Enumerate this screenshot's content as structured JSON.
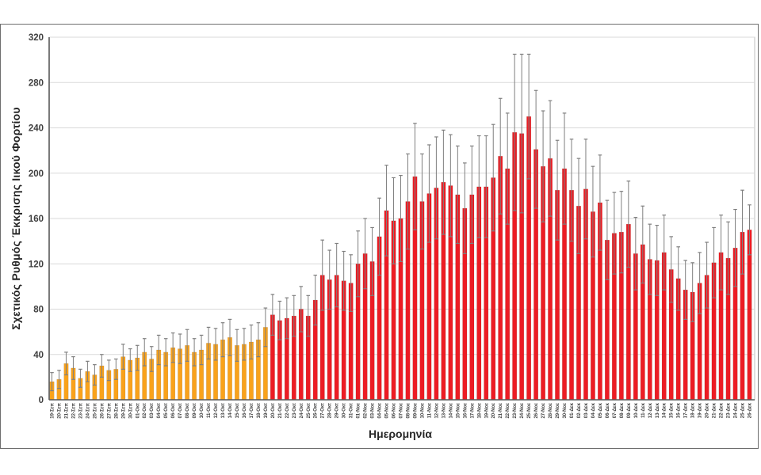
{
  "chart_data": {
    "type": "bar",
    "title": "",
    "xlabel": "Ημερομηνία",
    "ylabel": "Σχετικός Ρυθμός Έκκρισης Ιικού Φορτίου",
    "ylim": [
      0,
      320
    ],
    "yticks": [
      0,
      40,
      80,
      120,
      160,
      200,
      240,
      280,
      320
    ],
    "grid": true,
    "legend_position": "none",
    "orange_bar_count": 31,
    "colors": {
      "orange_bars": "#F9A21B",
      "red_bars": "#EC1C24",
      "error_bars": "#7F7F7F",
      "gridline": "#D9D9D9",
      "axis_line": "#595959",
      "tick_text": "#3F3F3F",
      "frame": "#6E6E6E"
    },
    "categories": [
      "19-Σεπ",
      "20-Σεπ",
      "21-Σεπ",
      "22-Σεπ",
      "23-Σεπ",
      "24-Σεπ",
      "25-Σεπ",
      "26-Σεπ",
      "27-Σεπ",
      "28-Σεπ",
      "29-Σεπ",
      "30-Σεπ",
      "01-Οκτ",
      "02-Οκτ",
      "03-Οκτ",
      "04-Οκτ",
      "05-Οκτ",
      "06-Οκτ",
      "07-Οκτ",
      "08-Οκτ",
      "09-Οκτ",
      "10-Οκτ",
      "11-Οκτ",
      "12-Οκτ",
      "13-Οκτ",
      "14-Οκτ",
      "15-Οκτ",
      "16-Οκτ",
      "17-Οκτ",
      "18-Οκτ",
      "19-Οκτ",
      "20-Οκτ",
      "21-Οκτ",
      "22-Οκτ",
      "23-Οκτ",
      "24-Οκτ",
      "25-Οκτ",
      "26-Οκτ",
      "27-Οκτ",
      "28-Οκτ",
      "29-Οκτ",
      "30-Οκτ",
      "31-Οκτ",
      "01-Νοε",
      "02-Νοε",
      "03-Νοε",
      "04-Νοε",
      "05-Νοε",
      "06-Νοε",
      "07-Νοε",
      "08-Νοε",
      "09-Νοε",
      "10-Νοε",
      "11-Νοε",
      "12-Νοε",
      "13-Νοε",
      "14-Νοε",
      "15-Νοε",
      "16-Νοε",
      "17-Νοε",
      "18-Νοε",
      "19-Νοε",
      "20-Νοε",
      "21-Νοε",
      "22-Νοε",
      "23-Νοε",
      "24-Νοε",
      "25-Νοε",
      "26-Νοε",
      "27-Νοε",
      "28-Νοε",
      "29-Νοε",
      "30-Νοε",
      "01-Δεκ",
      "02-Δεκ",
      "03-Δεκ",
      "04-Δεκ",
      "05-Δεκ",
      "06-Δεκ",
      "07-Δεκ",
      "08-Δεκ",
      "09-Δεκ",
      "10-Δεκ",
      "11-Δεκ",
      "12-Δεκ",
      "13-Δεκ",
      "14-Δεκ",
      "15-Δεκ",
      "16-Δεκ",
      "17-Δεκ",
      "18-Δεκ",
      "19-Δεκ",
      "20-Δεκ",
      "21-Δεκ",
      "22-Δεκ",
      "23-Δεκ",
      "24-Δεκ",
      "25-Δεκ",
      "26-Δεκ"
    ],
    "values": [
      16,
      18,
      32,
      28,
      19,
      25,
      22,
      30,
      26,
      27,
      38,
      35,
      37,
      42,
      36,
      44,
      42,
      46,
      45,
      48,
      42,
      44,
      50,
      49,
      53,
      55,
      48,
      49,
      51,
      53,
      64,
      75,
      70,
      72,
      74,
      80,
      74,
      88,
      110,
      106,
      110,
      105,
      103,
      120,
      129,
      122,
      144,
      167,
      158,
      160,
      175,
      197,
      175,
      182,
      187,
      192,
      189,
      181,
      169,
      181,
      188,
      188,
      196,
      215,
      204,
      236,
      235,
      250,
      221,
      206,
      213,
      185,
      204,
      185,
      171,
      186,
      166,
      174,
      141,
      147,
      148,
      155,
      129,
      137,
      124,
      123,
      130,
      115,
      107,
      97,
      95,
      103,
      110,
      121,
      130,
      125,
      134,
      148,
      150
    ],
    "errors": [
      8,
      8,
      10,
      10,
      8,
      9,
      9,
      10,
      9,
      9,
      11,
      10,
      11,
      12,
      11,
      13,
      12,
      13,
      13,
      14,
      12,
      13,
      14,
      14,
      15,
      16,
      14,
      14,
      15,
      15,
      17,
      18,
      17,
      18,
      18,
      20,
      18,
      22,
      31,
      26,
      28,
      26,
      25,
      29,
      31,
      30,
      34,
      40,
      38,
      38,
      42,
      47,
      42,
      43,
      45,
      46,
      45,
      43,
      40,
      43,
      45,
      45,
      47,
      51,
      49,
      69,
      70,
      55,
      52,
      49,
      51,
      44,
      49,
      45,
      42,
      44,
      40,
      42,
      35,
      36,
      36,
      38,
      32,
      34,
      31,
      31,
      33,
      29,
      28,
      26,
      26,
      27,
      29,
      31,
      33,
      32,
      34,
      37,
      22
    ]
  }
}
